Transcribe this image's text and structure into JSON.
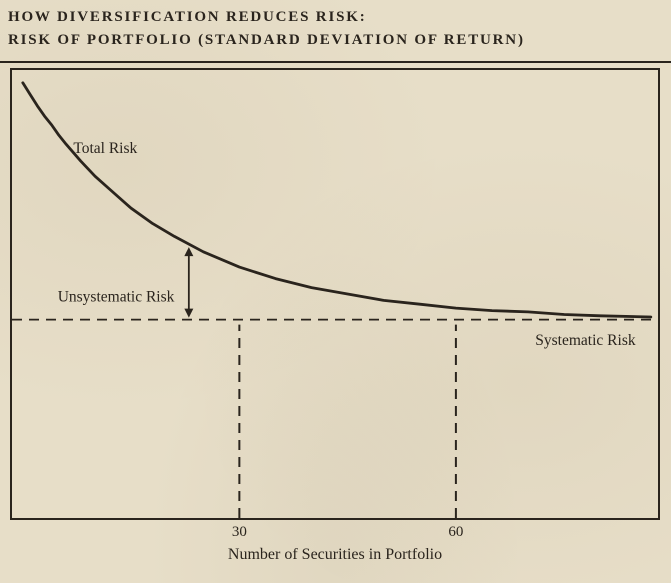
{
  "header": {
    "line1": "HOW DIVERSIFICATION REDUCES RISK:",
    "line2": "RISK OF PORTFOLIO (STANDARD DEVIATION OF RETURN)"
  },
  "colors": {
    "paper": "#e7dec8",
    "ink": "#2a241d"
  },
  "chart_data": {
    "type": "line",
    "title": "How diversification reduces risk: risk of portfolio (standard deviation of return)",
    "xlabel": "Number of Securities in Portfolio",
    "ylabel": "Risk of portfolio (standard deviation of return)",
    "xlim": [
      -1.5,
      88
    ],
    "ylim": [
      0,
      3.5
    ],
    "x_ticks": [
      30,
      60
    ],
    "grid": false,
    "legend": false,
    "systematic_risk_level": 1.55,
    "series": [
      {
        "name": "Total Risk",
        "x": [
          0,
          1,
          2,
          3,
          4,
          5,
          6,
          8,
          10,
          12,
          15,
          18,
          21,
          25,
          30,
          35,
          40,
          45,
          50,
          55,
          60,
          65,
          70,
          75,
          80,
          87
        ],
        "y": [
          3.4,
          3.31,
          3.22,
          3.14,
          3.07,
          2.99,
          2.92,
          2.79,
          2.67,
          2.57,
          2.42,
          2.3,
          2.2,
          2.08,
          1.96,
          1.87,
          1.8,
          1.75,
          1.7,
          1.67,
          1.64,
          1.62,
          1.61,
          1.59,
          1.58,
          1.57
        ]
      }
    ],
    "annotations": [
      {
        "text": "Total Risk",
        "x": 7,
        "y": 2.95,
        "align": "left",
        "vAlign": "top"
      },
      {
        "text": "Unsystematic Risk",
        "x": 21,
        "y": 1.73,
        "align": "right",
        "vAlign": "middle"
      },
      {
        "text": "Systematic Risk",
        "x": 71,
        "y": 1.45,
        "align": "left",
        "vAlign": "top"
      }
    ],
    "arrow": {
      "x": 23,
      "from_curve": true,
      "to_level": 1.55
    }
  }
}
